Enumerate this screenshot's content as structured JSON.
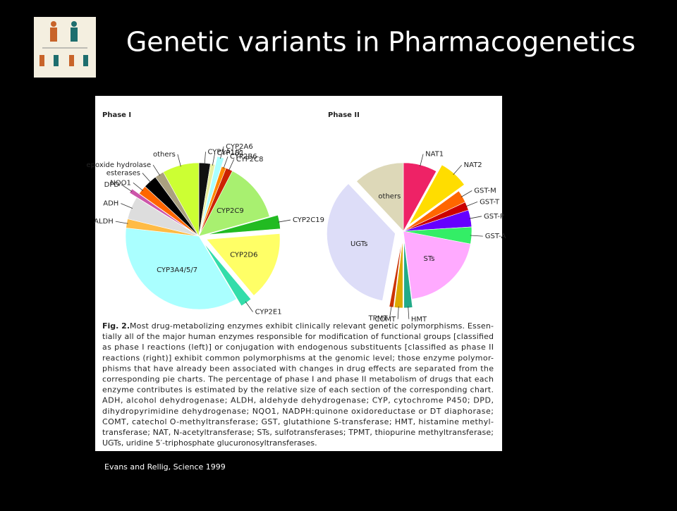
{
  "title": "Genetic variants in Pharmacogenetics",
  "figure_label": "Fig. 2.",
  "caption_lines": [
    " Most drug-metabolizing enzymes exhibit clinically relevant genetic polymorphisms. Essen-",
    "tially all of the major human enzymes responsible for modification of functional groups [classified",
    "as phase I reactions (left)] or conjugation with endogenous substituents [classified as phase II",
    "reactions (right)] exhibit common polymorphisms at the genomic level; those enzyme polymor-",
    "phisms that have already been associated with changes in drug effects are separated from the",
    "corresponding pie charts. The percentage of phase I and phase II metabolism of drugs that each",
    "enzyme contributes is estimated by the relative size of each section of the corresponding chart.",
    "ADH, alcohol dehydrogenase; ALDH, aldehyde dehydrogenase; CYP, cytochrome P450; DPD,",
    "dihydropyrimidine dehydrogenase; NQO1, NADPH:quinone oxidoreductase or DT diaphorase;",
    "COMT, catechol O-methyltransferase; GST, glutathione S-transferase; HMT, histamine methyl-",
    "transferase; NAT, N-acetyltransferase; STs, sulfotransferases; TPMT, thiopurine methyltransferase;",
    "UGTs, uridine 5′-triphosphate glucuronosyltransferases."
  ],
  "citation": "Evans and Rellig, Science 1999",
  "chart_data": [
    {
      "type": "pie",
      "title": "Phase I",
      "categories": [
        "CYP1A1/2",
        "CYP1B1",
        "CYP2A6",
        "CYP2B6",
        "CYP2C8",
        "CYP2C9",
        "CYP2C19",
        "CYP2D6",
        "CYP2E1",
        "CYP3A4/5/7",
        "ALDH",
        "ADH",
        "DPD",
        "NQO1",
        "esterases",
        "epoxide hydrolase",
        "others"
      ],
      "values": [
        2.5,
        1,
        1.5,
        1,
        1.5,
        13,
        3,
        15,
        2.5,
        35,
        2,
        5,
        1,
        2,
        3,
        2,
        8
      ],
      "colors": [
        "#111111",
        "#e8f0a0",
        "#aaffff",
        "#ff8800",
        "#cc2200",
        "#a8f070",
        "#22bb22",
        "#ffff66",
        "#33ddaa",
        "#aaffff",
        "#ffbb44",
        "#dddddd",
        "#cc55aa",
        "#ff6600",
        "#000000",
        "#aaa080",
        "#ccff33"
      ],
      "exploded": [
        false,
        false,
        true,
        false,
        false,
        false,
        true,
        true,
        true,
        false,
        false,
        false,
        true,
        false,
        false,
        false,
        false
      ]
    },
    {
      "type": "pie",
      "title": "Phase II",
      "categories": [
        "NAT1",
        "NAT2",
        "GST-M",
        "GST-T",
        "GST-P",
        "GST-A",
        "STs",
        "HMT",
        "COMT",
        "TPMT",
        "UGTs",
        "others"
      ],
      "values": [
        8,
        7,
        3,
        2,
        4,
        4,
        20,
        2,
        2,
        1,
        35,
        12
      ],
      "colors": [
        "#ee2266",
        "#ffdd00",
        "#ff6600",
        "#cc0000",
        "#6600ff",
        "#33ee66",
        "#ffaaff",
        "#22aa88",
        "#ddaa00",
        "#cc3300",
        "#ddddf8",
        "#ddd8b8"
      ],
      "exploded": [
        false,
        true,
        false,
        false,
        false,
        false,
        false,
        true,
        true,
        true,
        true,
        false
      ]
    }
  ]
}
